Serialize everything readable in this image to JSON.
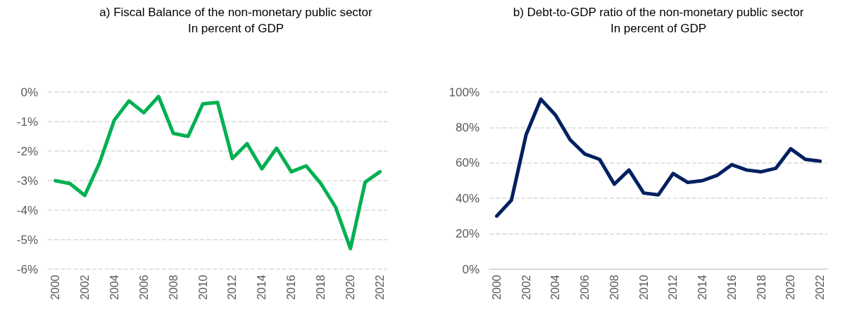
{
  "chart_data": [
    {
      "type": "line",
      "title": "a) Fiscal Balance of the non-monetary public sector",
      "subtitle": "In percent of GDP",
      "categories": [
        "2000",
        null,
        "2002",
        null,
        "2004",
        null,
        "2006",
        null,
        "2008",
        null,
        "2010",
        null,
        "2012",
        null,
        "2014",
        null,
        "2016",
        null,
        "2018",
        null,
        "2020",
        null,
        "2022"
      ],
      "series": [
        {
          "color": "#00b050",
          "values": [
            -3.0,
            -3.1,
            -3.5,
            -2.4,
            -0.95,
            -0.3,
            -0.7,
            -0.15,
            -1.4,
            -1.5,
            -0.4,
            -0.35,
            -2.25,
            -1.75,
            -2.6,
            -1.9,
            -2.7,
            -2.5,
            -3.1,
            -3.9,
            -5.3,
            -3.05,
            -2.7
          ]
        }
      ],
      "ylim": [
        -6,
        0
      ],
      "yticks": [
        {
          "value": -6,
          "label": "-6%"
        },
        {
          "value": -5,
          "label": "-5%"
        },
        {
          "value": -4,
          "label": "-4%"
        },
        {
          "value": -3,
          "label": "-3%"
        },
        {
          "value": -2,
          "label": "-2%"
        },
        {
          "value": -1,
          "label": "-1%"
        },
        {
          "value": 0,
          "label": "0%"
        }
      ],
      "grid": "y",
      "marker": "none",
      "line_style": "solid"
    },
    {
      "type": "line",
      "title": "b) Debt-to-GDP ratio of the non-monetary public sector",
      "subtitle": "In percent of GDP",
      "categories": [
        "2000",
        null,
        "2002",
        null,
        "2004",
        null,
        "2006",
        null,
        "2008",
        null,
        "2010",
        null,
        "2012",
        null,
        "2014",
        null,
        "2016",
        null,
        "2018",
        null,
        "2020",
        null,
        "2022"
      ],
      "series": [
        {
          "color": "#002060",
          "values": [
            30,
            39,
            76,
            96,
            87,
            73,
            65,
            62,
            48,
            56,
            43,
            42,
            54,
            49,
            50,
            53,
            59,
            56,
            55,
            57,
            68,
            62,
            61
          ]
        }
      ],
      "ylim": [
        0,
        100
      ],
      "yticks": [
        {
          "value": 0,
          "label": "0%"
        },
        {
          "value": 20,
          "label": "20%"
        },
        {
          "value": 40,
          "label": "40%"
        },
        {
          "value": 60,
          "label": "60%"
        },
        {
          "value": 80,
          "label": "80%"
        },
        {
          "value": 100,
          "label": "100%"
        }
      ],
      "grid": "y",
      "marker": "none",
      "line_style": "solid"
    }
  ]
}
